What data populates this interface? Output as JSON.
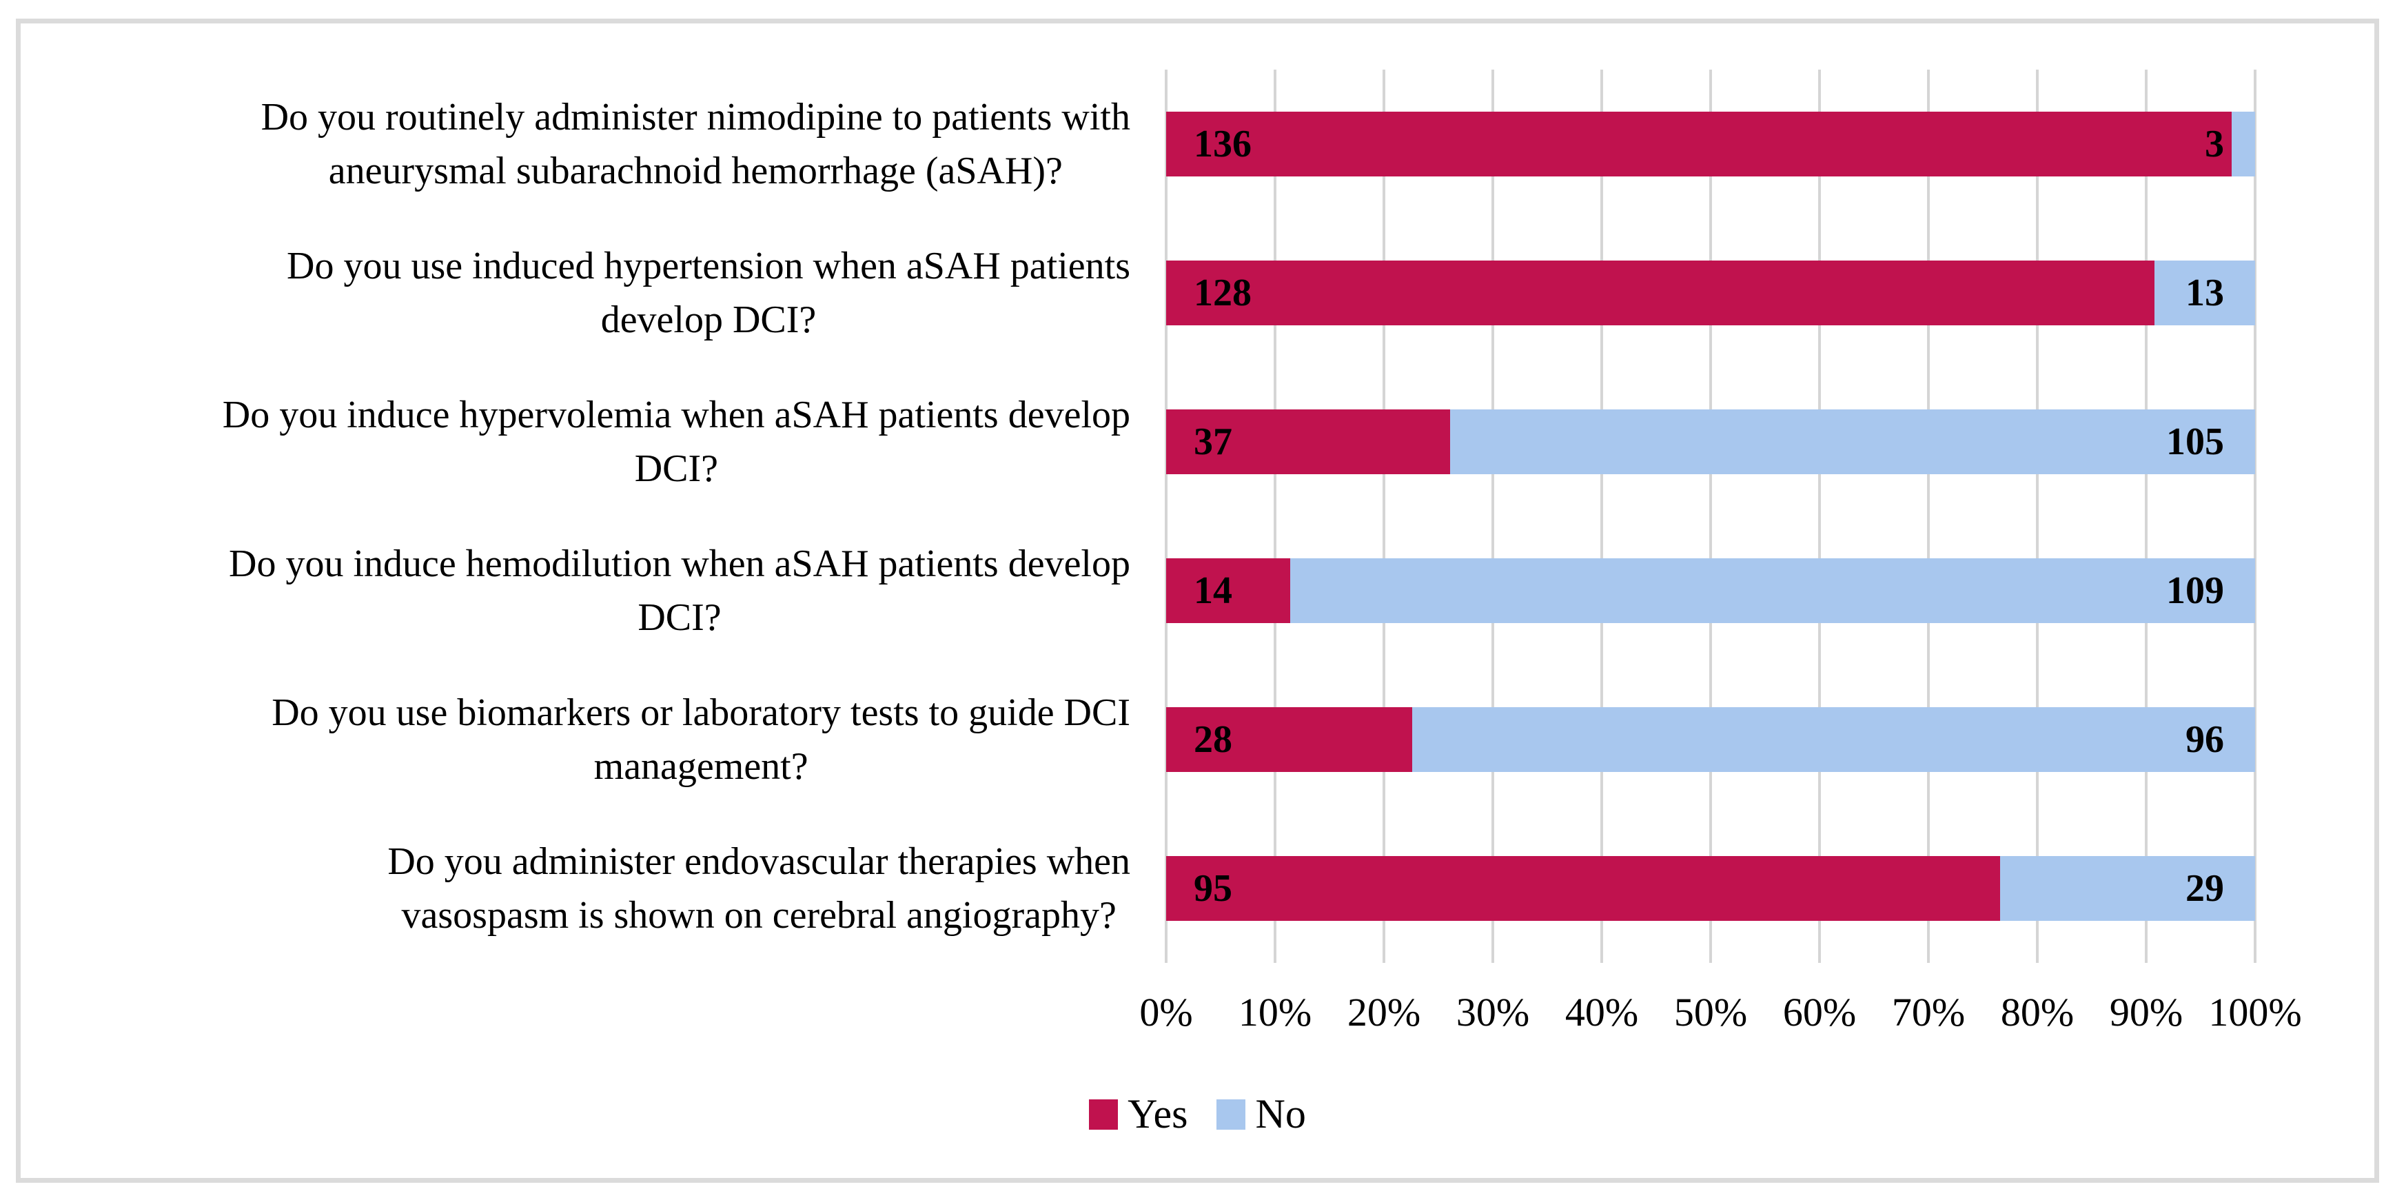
{
  "figure": {
    "frame_border_color": "#dbdbdb",
    "background_color": "#ffffff",
    "grid_color": "#d5d5d5",
    "value_label_color": "#000000"
  },
  "chart_data": {
    "type": "bar",
    "orientation": "horizontal",
    "stacked": true,
    "stack_mode": "percent",
    "title": "",
    "xlabel": "",
    "ylabel": "",
    "xlim": [
      0,
      100
    ],
    "grid": "vertical",
    "legend_position": "bottom",
    "x_ticks": [
      "0%",
      "10%",
      "20%",
      "30%",
      "40%",
      "50%",
      "60%",
      "70%",
      "80%",
      "90%",
      "100%"
    ],
    "categories": [
      "Do you routinely administer nimodipine to patients with aneurysmal subarachnoid hemorrhage (aSAH)?",
      "Do you use induced hypertension when aSAH patients develop DCI?",
      "Do you induce hypervolemia when aSAH patients develop DCI?",
      "Do you induce hemodilution when aSAH patients develop DCI?",
      "Do you use biomarkers or laboratory tests to guide DCI management?",
      "Do you administer endovascular therapies when vasospasm is shown on cerebral angiography?"
    ],
    "category_label_lines": [
      [
        "Do you routinely administer nimodipine to patients with",
        "aneurysmal subarachnoid hemorrhage (aSAH)?"
      ],
      [
        "Do you use induced hypertension when aSAH patients",
        "develop DCI?"
      ],
      [
        "Do you induce hypervolemia when aSAH patients develop",
        "DCI?"
      ],
      [
        "Do you induce hemodilution when aSAH patients develop",
        "DCI?"
      ],
      [
        "Do you use biomarkers or laboratory tests to guide DCI",
        "management?"
      ],
      [
        "Do you administer endovascular therapies when",
        "vasospasm is shown on cerebral angiography?"
      ]
    ],
    "series": [
      {
        "name": "Yes",
        "color": "#c0124e",
        "values": [
          136,
          128,
          37,
          14,
          28,
          95
        ]
      },
      {
        "name": "No",
        "color": "#a8c7ee",
        "values": [
          3,
          13,
          105,
          109,
          96,
          29
        ]
      }
    ]
  }
}
